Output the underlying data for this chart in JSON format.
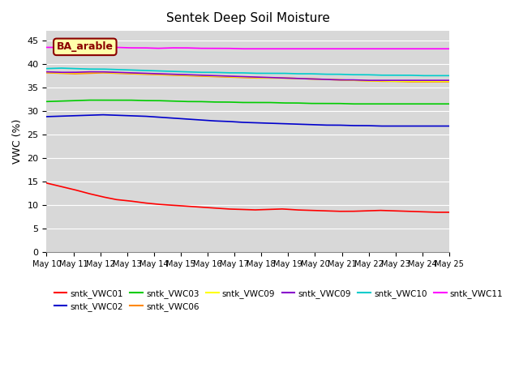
{
  "title": "Sentek Deep Soil Moisture",
  "ylabel": "VWC (%)",
  "annotation": "BA_arable",
  "ylim": [
    0,
    47
  ],
  "yticks": [
    0,
    5,
    10,
    15,
    20,
    25,
    30,
    35,
    40,
    45
  ],
  "date_labels": [
    "May 10",
    "May 11",
    "May 12",
    "May 13",
    "May 14",
    "May 15",
    "May 16",
    "May 17",
    "May 18",
    "May 19",
    "May 20",
    "May 21",
    "May 22",
    "May 23",
    "May 24",
    "May 25"
  ],
  "background_color": "#d8d8d8",
  "fig_width": 6.4,
  "fig_height": 4.8,
  "dpi": 100,
  "series": [
    {
      "label": "sntk_VWC01",
      "color": "#ff0000",
      "points": [
        14.7,
        14.0,
        13.3,
        12.5,
        11.8,
        11.2,
        10.9,
        10.5,
        10.2,
        10.0,
        9.8,
        9.6,
        9.4,
        9.2,
        9.1,
        9.0,
        9.1,
        9.2,
        9.0,
        8.9,
        8.8,
        8.7,
        8.7,
        8.8,
        8.9,
        8.8,
        8.7,
        8.6,
        8.5,
        8.5
      ]
    },
    {
      "label": "sntk_VWC02",
      "color": "#0000cc",
      "points": [
        28.8,
        28.9,
        29.0,
        29.1,
        29.2,
        29.1,
        29.0,
        28.9,
        28.7,
        28.5,
        28.3,
        28.1,
        27.9,
        27.8,
        27.6,
        27.5,
        27.4,
        27.3,
        27.2,
        27.1,
        27.0,
        27.0,
        26.9,
        26.9,
        26.8,
        26.8,
        26.8,
        26.8,
        26.8,
        26.8
      ]
    },
    {
      "label": "sntk_VWC03",
      "color": "#00cc00",
      "points": [
        32.0,
        32.1,
        32.2,
        32.3,
        32.3,
        32.3,
        32.3,
        32.2,
        32.2,
        32.1,
        32.0,
        32.0,
        31.9,
        31.9,
        31.8,
        31.8,
        31.8,
        31.7,
        31.7,
        31.6,
        31.6,
        31.6,
        31.5,
        31.5,
        31.5,
        31.5,
        31.5,
        31.5,
        31.5,
        31.5
      ]
    },
    {
      "label": "sntk_VWC06",
      "color": "#ff8800",
      "points": [
        38.1,
        38.0,
        37.9,
        38.0,
        38.1,
        38.0,
        37.9,
        37.8,
        37.7,
        37.6,
        37.5,
        37.4,
        37.3,
        37.2,
        37.1,
        37.0,
        37.0,
        37.0,
        36.9,
        36.8,
        36.7,
        36.6,
        36.5,
        36.4,
        36.3,
        36.3,
        36.2,
        36.2,
        36.2,
        36.2
      ]
    },
    {
      "label": "sntk_VWC09",
      "color": "#ffff00",
      "points": [
        38.2,
        38.1,
        38.1,
        38.2,
        38.2,
        38.1,
        38.0,
        37.9,
        37.8,
        37.7,
        37.6,
        37.5,
        37.4,
        37.3,
        37.2,
        37.1,
        37.0,
        37.0,
        36.9,
        36.8,
        36.7,
        36.6,
        36.5,
        36.4,
        36.4,
        36.3,
        36.3,
        36.3,
        36.3,
        36.3
      ]
    },
    {
      "label": "sntk_VWC09",
      "color": "#8800cc",
      "points": [
        38.3,
        38.2,
        38.2,
        38.3,
        38.3,
        38.2,
        38.1,
        38.0,
        37.9,
        37.8,
        37.7,
        37.6,
        37.5,
        37.4,
        37.3,
        37.2,
        37.1,
        37.0,
        36.9,
        36.8,
        36.7,
        36.6,
        36.6,
        36.5,
        36.5,
        36.5,
        36.5,
        36.5,
        36.5,
        36.5
      ]
    },
    {
      "label": "sntk_VWC10",
      "color": "#00cccc",
      "points": [
        39.0,
        39.1,
        39.0,
        38.9,
        38.9,
        38.8,
        38.7,
        38.6,
        38.5,
        38.4,
        38.3,
        38.2,
        38.2,
        38.1,
        38.1,
        38.0,
        38.0,
        38.0,
        37.9,
        37.9,
        37.8,
        37.8,
        37.7,
        37.7,
        37.6,
        37.6,
        37.6,
        37.5,
        37.5,
        37.5
      ]
    },
    {
      "label": "sntk_VWC11",
      "color": "#ff00ff",
      "points": [
        43.5,
        43.5,
        43.4,
        43.5,
        43.5,
        43.5,
        43.4,
        43.4,
        43.3,
        43.4,
        43.4,
        43.3,
        43.3,
        43.3,
        43.2,
        43.2,
        43.2,
        43.2,
        43.2,
        43.2,
        43.2,
        43.2,
        43.2,
        43.2,
        43.2,
        43.2,
        43.2,
        43.2,
        43.2,
        43.2
      ]
    }
  ],
  "legend_order": [
    0,
    1,
    2,
    3,
    4,
    5,
    6,
    7
  ],
  "legend_ncol": 6
}
